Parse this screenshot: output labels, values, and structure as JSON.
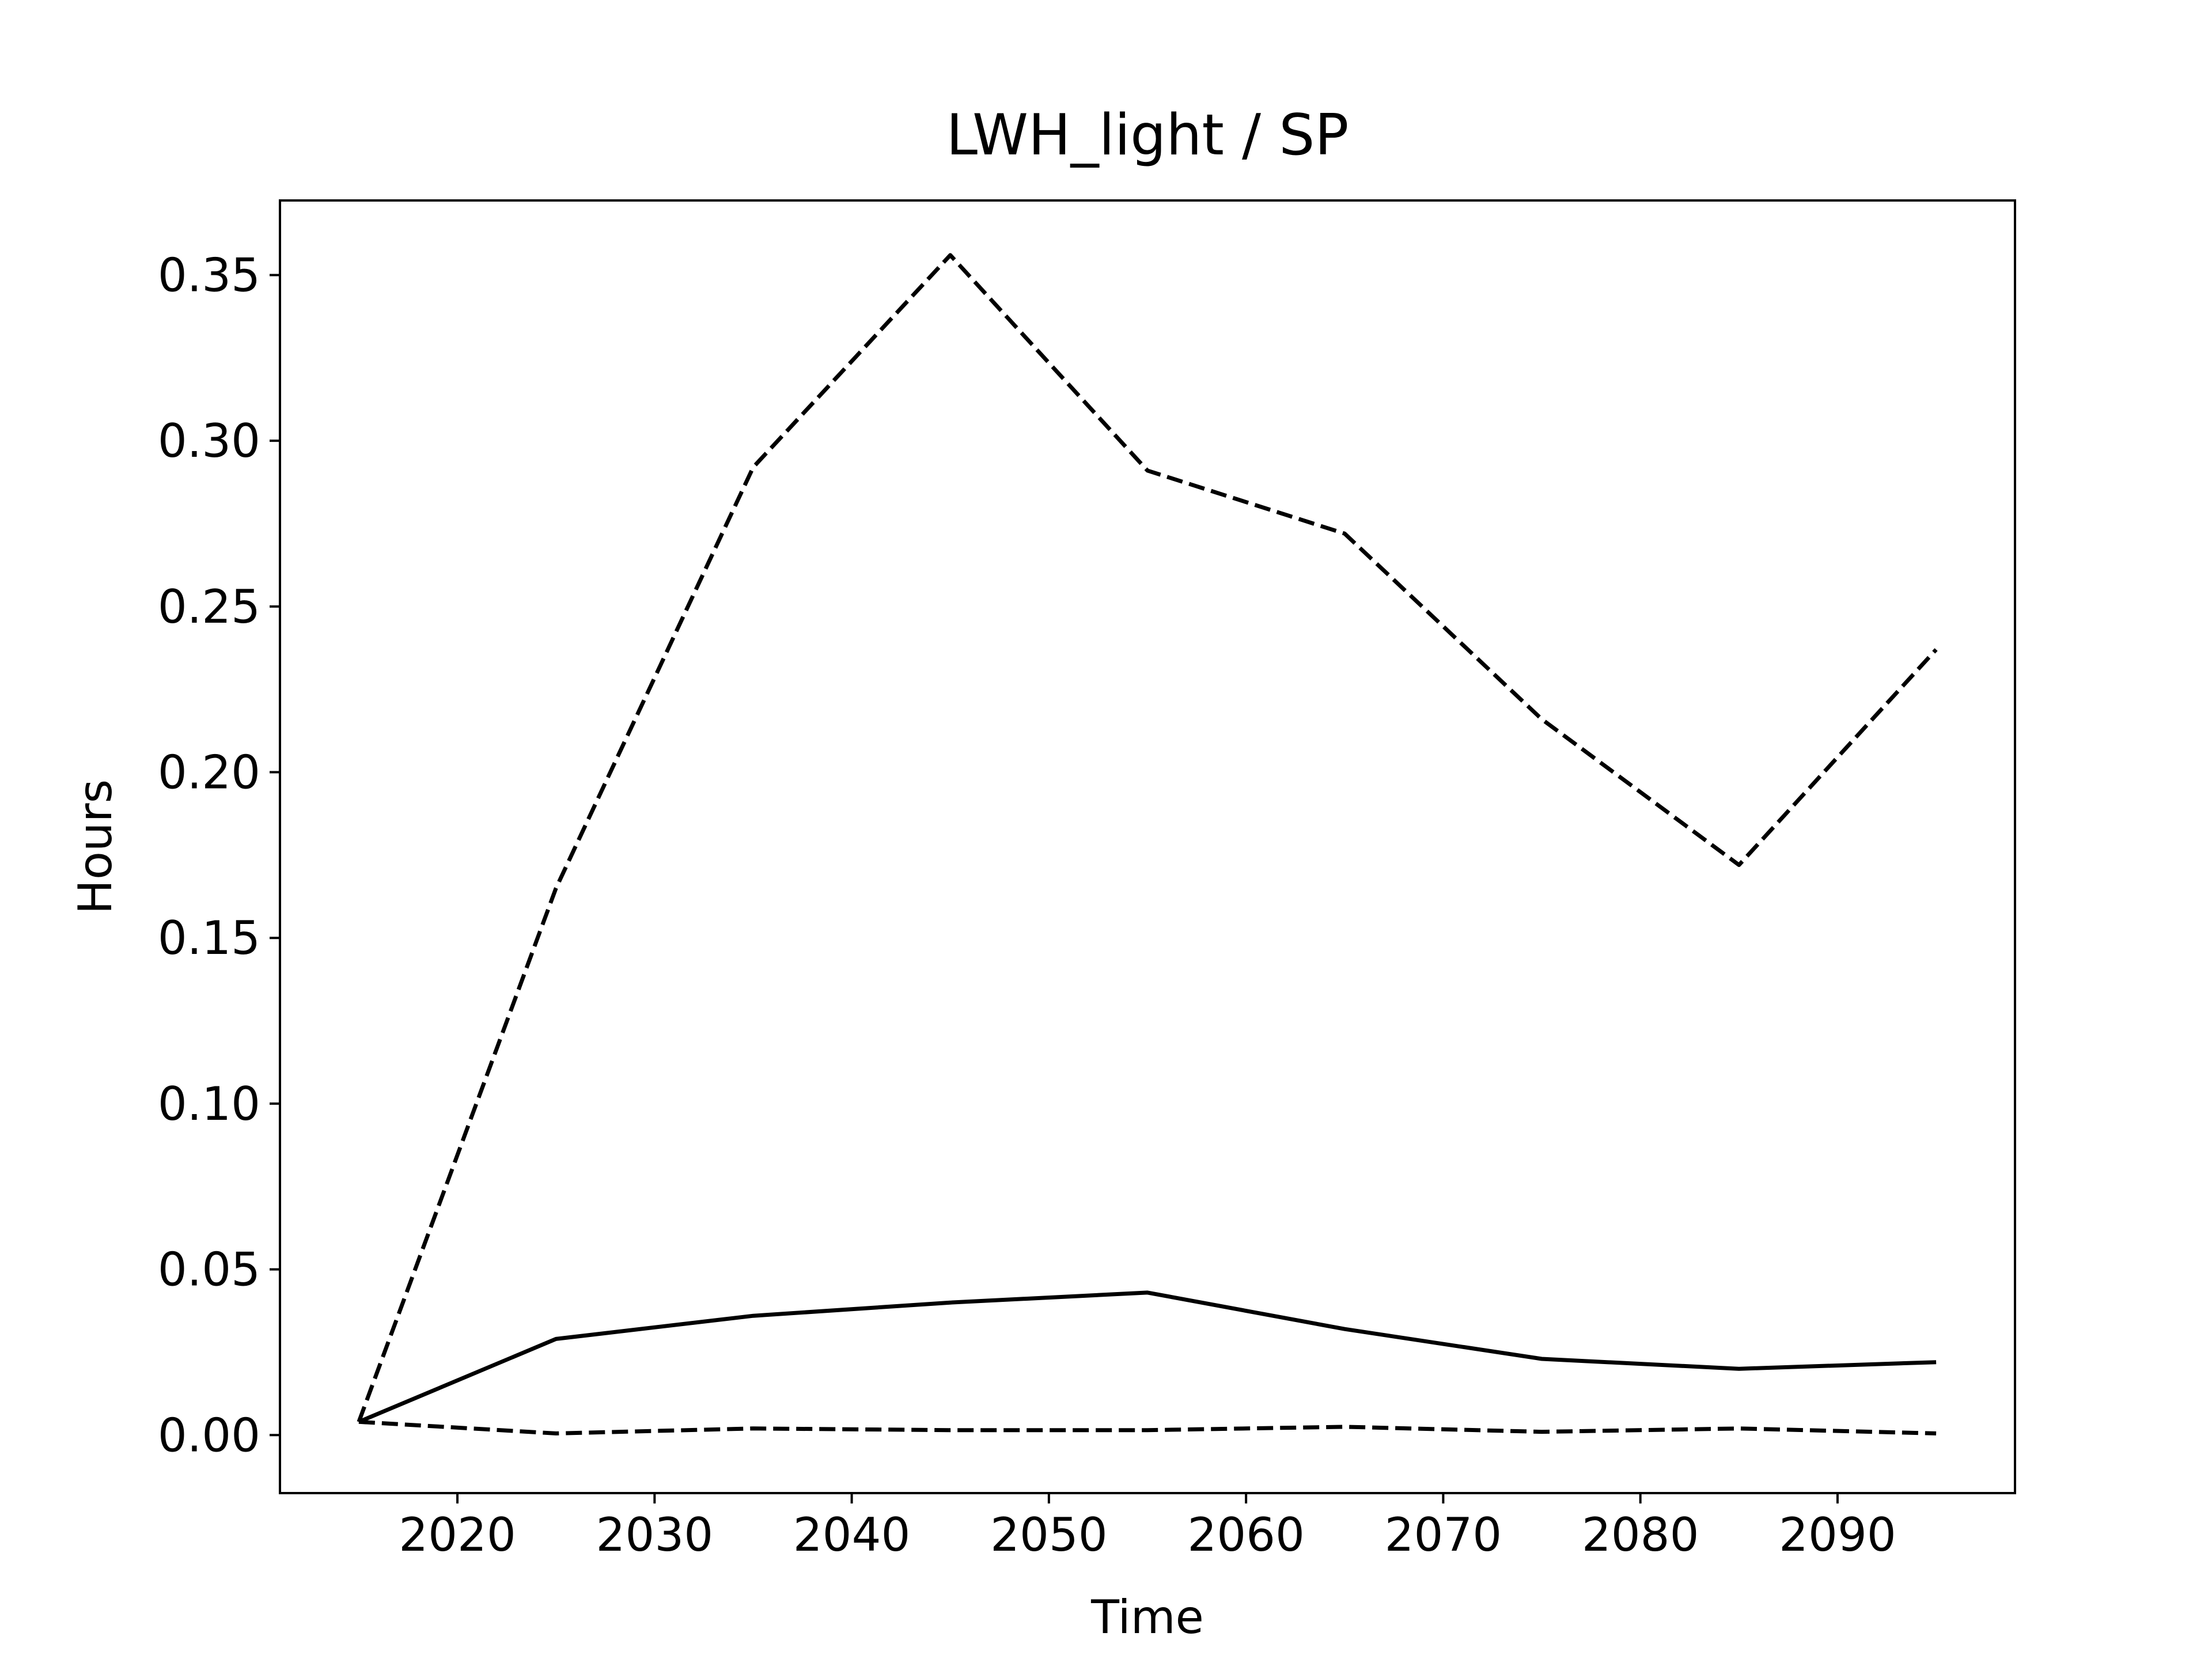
{
  "chart_data": {
    "type": "line",
    "title": "LWH_light / SP",
    "xlabel": "Time",
    "ylabel": "Hours",
    "xlim": [
      2011,
      2099
    ],
    "ylim": [
      -0.0175,
      0.3725
    ],
    "xticks": [
      2020,
      2030,
      2040,
      2050,
      2060,
      2070,
      2080,
      2090
    ],
    "xtick_labels": [
      "2020",
      "2030",
      "2040",
      "2050",
      "2060",
      "2070",
      "2080",
      "2090"
    ],
    "yticks": [
      0.0,
      0.05,
      0.1,
      0.15,
      0.2,
      0.25,
      0.3,
      0.35
    ],
    "ytick_labels": [
      "0.00",
      "0.05",
      "0.10",
      "0.15",
      "0.20",
      "0.25",
      "0.30",
      "0.35"
    ],
    "grid": false,
    "legend": "none",
    "x": [
      2015,
      2025,
      2035,
      2045,
      2055,
      2065,
      2075,
      2085,
      2095
    ],
    "series": [
      {
        "style": "solid",
        "color": "#000000",
        "values": [
          0.004,
          0.029,
          0.036,
          0.04,
          0.043,
          0.032,
          0.023,
          0.02,
          0.022
        ]
      },
      {
        "style": "dashed",
        "color": "#000000",
        "values": [
          0.004,
          0.165,
          0.292,
          0.356,
          0.291,
          0.272,
          0.216,
          0.172,
          0.237
        ]
      },
      {
        "style": "dashed",
        "color": "#000000",
        "values": [
          0.004,
          0.0005,
          0.002,
          0.0015,
          0.0015,
          0.0025,
          0.001,
          0.002,
          0.0005
        ]
      }
    ]
  }
}
